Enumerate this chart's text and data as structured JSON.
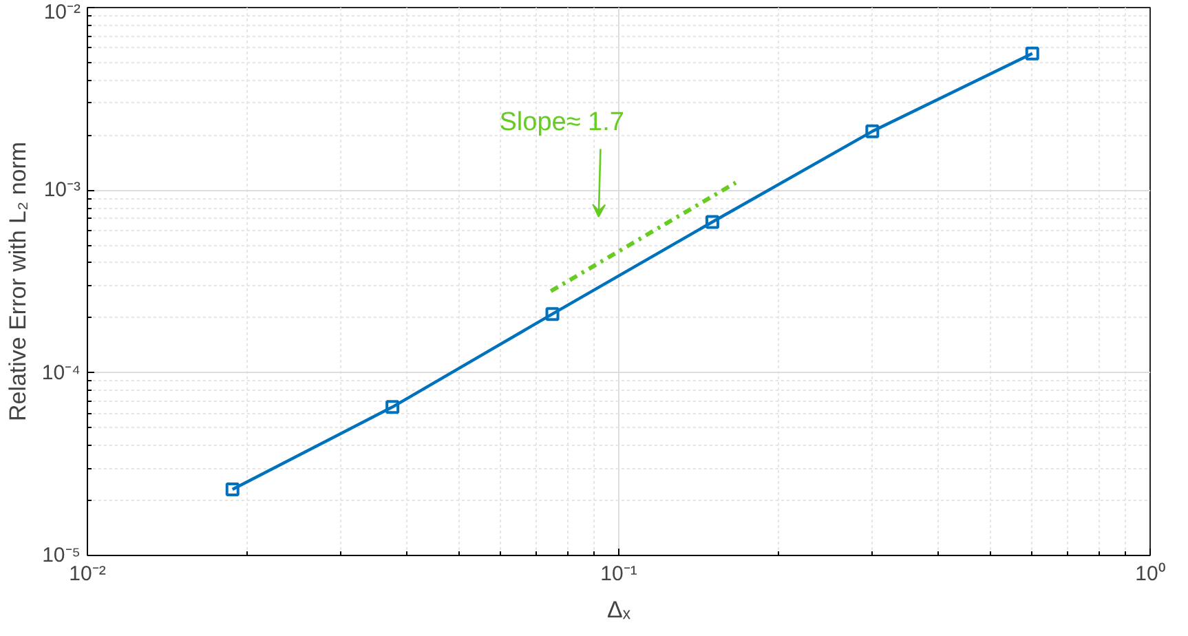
{
  "chart_data": {
    "type": "line",
    "xlabel": "Δₓ",
    "ylabel": "Relative Error with L₂ norm",
    "log": "xy",
    "grid": true,
    "marker": "square",
    "xlim": [
      0.01,
      1
    ],
    "ylim": [
      1e-05,
      0.01
    ],
    "xticks": [
      {
        "value": 0.01,
        "label": "10⁻²"
      },
      {
        "value": 0.1,
        "label": "10⁻¹"
      },
      {
        "value": 1,
        "label": "10⁰"
      }
    ],
    "yticks": [
      {
        "value": 1e-05,
        "label": "10⁻⁵"
      },
      {
        "value": 0.0001,
        "label": "10⁻⁴"
      },
      {
        "value": 0.001,
        "label": "10⁻³"
      },
      {
        "value": 0.01,
        "label": "10⁻²"
      }
    ],
    "series": [
      {
        "color": "#0072bd",
        "x": [
          0.01875,
          0.0375,
          0.075,
          0.15,
          0.3,
          0.6
        ],
        "values": [
          2.3e-05,
          6.5e-05,
          0.00021,
          0.00067,
          0.0021,
          0.0056
        ]
      },
      {
        "color": "#66cc22",
        "x": [
          0.0745,
          0.166
        ],
        "values": [
          0.00028,
          0.0011
        ],
        "marker": "none",
        "line_style": "dashed"
      }
    ],
    "annotations": [
      "Slope≈ 1.7"
    ]
  }
}
